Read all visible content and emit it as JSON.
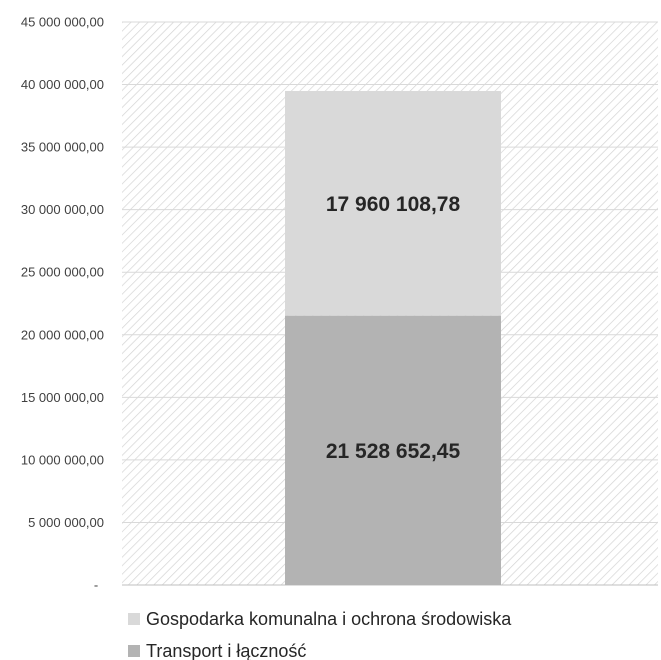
{
  "chart_data": {
    "type": "bar",
    "stacked": true,
    "categories": [
      ""
    ],
    "ylim": [
      0,
      45000000
    ],
    "y_ticks": [
      {
        "value": 0,
        "label": "-"
      },
      {
        "value": 5000000,
        "label": "5 000 000,00"
      },
      {
        "value": 10000000,
        "label": "10 000 000,00"
      },
      {
        "value": 15000000,
        "label": "15 000 000,00"
      },
      {
        "value": 20000000,
        "label": "20 000 000,00"
      },
      {
        "value": 25000000,
        "label": "25 000 000,00"
      },
      {
        "value": 30000000,
        "label": "30 000 000,00"
      },
      {
        "value": 35000000,
        "label": "35 000 000,00"
      },
      {
        "value": 40000000,
        "label": "40 000 000,00"
      },
      {
        "value": 45000000,
        "label": "45 000 000,00"
      }
    ],
    "series": [
      {
        "name": "Transport i łączność",
        "values": [
          21528652.45
        ],
        "value_labels": [
          "21 528 652,45"
        ],
        "color": "#b3b3b3"
      },
      {
        "name": "Gospodarka komunalna i ochrona środowiska",
        "values": [
          17960108.78
        ],
        "value_labels": [
          "17 960 108,78"
        ],
        "color": "#d9d9d9"
      }
    ],
    "legend": {
      "position": "bottom",
      "entries": [
        "Gospodarka komunalna i ochrona środowiska",
        "Transport i łączność"
      ]
    },
    "grid": true,
    "plot_background": "hatched",
    "colors": {
      "grid": "#d9d9d9",
      "hatch": "#d4d4d4",
      "text": "#262626"
    }
  }
}
